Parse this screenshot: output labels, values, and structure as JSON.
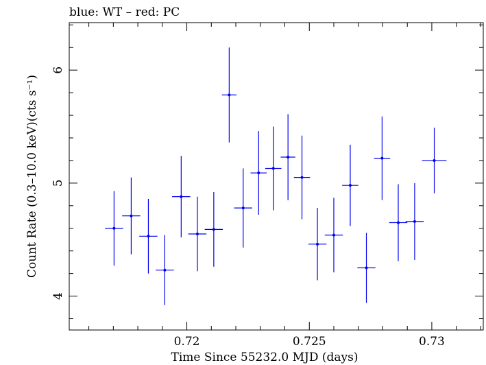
{
  "chart_data": {
    "type": "scatter",
    "title": "blue: WT – red: PC",
    "xlabel": "Time Since 55232.0 MJD (days)",
    "ylabel": "Count Rate (0.3–10.0 keV)(cts s⁻¹)",
    "xlim": [
      0.7152,
      0.7321
    ],
    "ylim": [
      3.7,
      6.42
    ],
    "x_ticks": [
      0.72,
      0.725,
      0.73
    ],
    "x_tick_labels": [
      "0.72",
      "0.725",
      "0.73"
    ],
    "y_ticks": [
      4,
      5,
      6
    ],
    "y_tick_labels": [
      "4",
      "5",
      "6"
    ],
    "grid": false,
    "colors": {
      "WT": "#0000ee",
      "frame": "#000000"
    },
    "series": [
      {
        "name": "WT",
        "points": [
          {
            "x": 0.71703,
            "xerr": 0.00037,
            "y": 4.6,
            "yerr": 0.33
          },
          {
            "x": 0.71773,
            "xerr": 0.00037,
            "y": 4.71,
            "yerr": 0.34
          },
          {
            "x": 0.71843,
            "xerr": 0.00037,
            "y": 4.53,
            "yerr": 0.33
          },
          {
            "x": 0.7191,
            "xerr": 0.00037,
            "y": 4.23,
            "yerr": 0.31
          },
          {
            "x": 0.71977,
            "xerr": 0.00037,
            "y": 4.88,
            "yerr": 0.36
          },
          {
            "x": 0.72043,
            "xerr": 0.00037,
            "y": 4.55,
            "yerr": 0.33
          },
          {
            "x": 0.7211,
            "xerr": 0.00037,
            "y": 4.59,
            "yerr": 0.33
          },
          {
            "x": 0.72173,
            "xerr": 0.0003,
            "y": 5.78,
            "yerr": 0.42
          },
          {
            "x": 0.7223,
            "xerr": 0.00037,
            "y": 4.78,
            "yerr": 0.35
          },
          {
            "x": 0.72293,
            "xerr": 0.00033,
            "y": 5.09,
            "yerr": 0.37
          },
          {
            "x": 0.72353,
            "xerr": 0.00033,
            "y": 5.13,
            "yerr": 0.37
          },
          {
            "x": 0.72413,
            "xerr": 0.0003,
            "y": 5.23,
            "yerr": 0.38
          },
          {
            "x": 0.7247,
            "xerr": 0.00033,
            "y": 5.05,
            "yerr": 0.37
          },
          {
            "x": 0.72533,
            "xerr": 0.00037,
            "y": 4.46,
            "yerr": 0.32
          },
          {
            "x": 0.726,
            "xerr": 0.00037,
            "y": 4.54,
            "yerr": 0.33
          },
          {
            "x": 0.72667,
            "xerr": 0.00033,
            "y": 4.98,
            "yerr": 0.36
          },
          {
            "x": 0.72733,
            "xerr": 0.00037,
            "y": 4.25,
            "yerr": 0.31
          },
          {
            "x": 0.72797,
            "xerr": 0.00033,
            "y": 5.22,
            "yerr": 0.37
          },
          {
            "x": 0.72863,
            "xerr": 0.00037,
            "y": 4.65,
            "yerr": 0.34
          },
          {
            "x": 0.7293,
            "xerr": 0.00037,
            "y": 4.66,
            "yerr": 0.34
          },
          {
            "x": 0.7301,
            "xerr": 0.0005,
            "y": 5.2,
            "yerr": 0.29
          }
        ]
      }
    ]
  }
}
